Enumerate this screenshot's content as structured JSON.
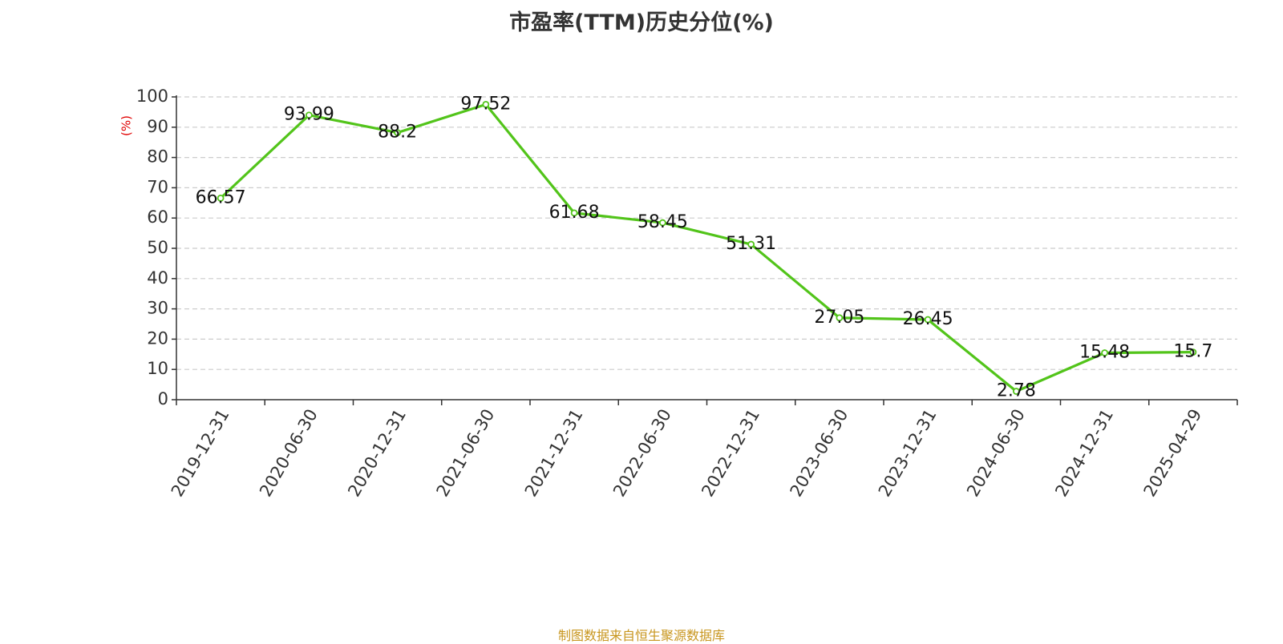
{
  "chart_data": {
    "type": "line",
    "title": "市盈率(TTM)历史分位(%)",
    "ylabel": "(%)",
    "xlabel": "",
    "categories": [
      "2019-12-31",
      "2020-06-30",
      "2020-12-31",
      "2021-06-30",
      "2021-12-31",
      "2022-06-30",
      "2022-12-31",
      "2023-06-30",
      "2023-12-31",
      "2024-06-30",
      "2024-12-31",
      "2025-04-29"
    ],
    "series": [
      {
        "values": [
          66.57,
          93.99,
          88.2,
          97.52,
          61.68,
          58.45,
          51.31,
          27.05,
          26.45,
          2.78,
          15.48,
          15.7
        ],
        "labels": [
          "66.57",
          "93.99",
          "88.2",
          "97.52",
          "61.68",
          "58.45",
          "51.31",
          "27.05",
          "26.45",
          "2.78",
          "15.48",
          "15.7"
        ]
      }
    ],
    "ylim": [
      0,
      100
    ],
    "yticks": [
      0,
      10,
      20,
      30,
      40,
      50,
      60,
      70,
      80,
      90,
      100
    ],
    "grid": true,
    "legend": "none"
  },
  "colors": {
    "line": "#52c41a",
    "ylabel": "#e00000",
    "source": "#c8961e",
    "grid": "#cccccc",
    "axis": "#333333"
  },
  "source_note": "制图数据来自恒生聚源数据库"
}
